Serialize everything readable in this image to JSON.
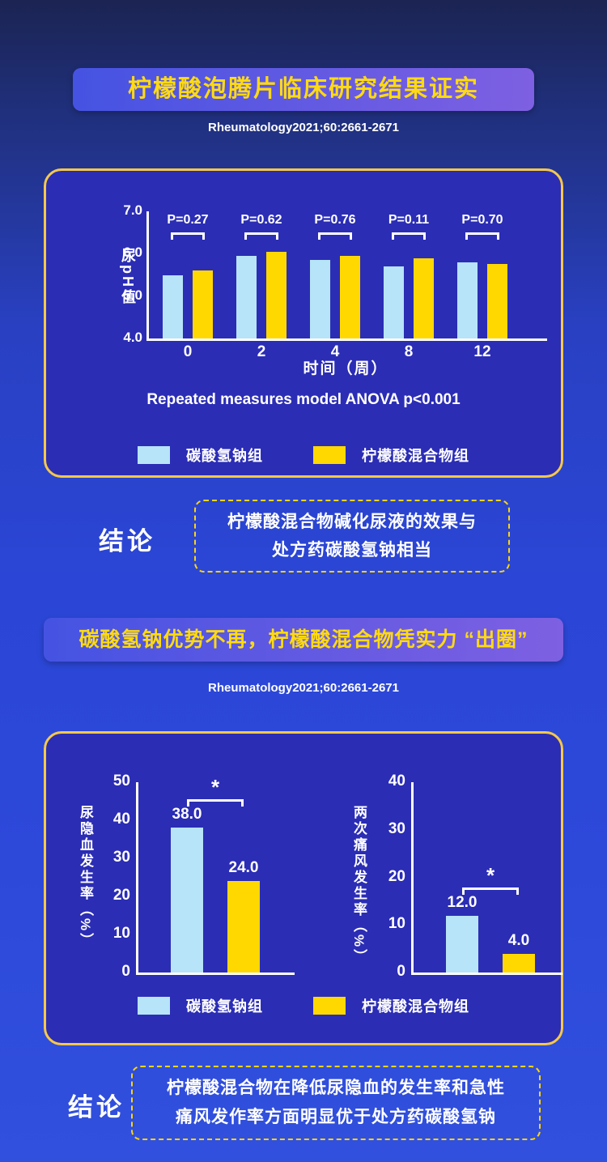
{
  "colors": {
    "accent_yellow": "#FFD60A",
    "panel_border": "#F5C84B",
    "bar_blue": "#B7E4F8",
    "bar_yellow": "#FFD800",
    "panel_background": "#2B2DB5"
  },
  "section1": {
    "title": "柠檬酸泡腾片临床研究结果证实",
    "reference": "Rheumatology2021;60:2661-2671"
  },
  "chart_data": [
    {
      "type": "bar",
      "ylabel": "尿pH值",
      "xlabel": "时间（周）",
      "ylim": [
        4.0,
        7.0
      ],
      "yticks": [
        "7.0",
        "6.0",
        "5.0",
        "4.0"
      ],
      "categories": [
        "0",
        "2",
        "4",
        "8",
        "12"
      ],
      "series": [
        {
          "name": "碳酸氢钠组",
          "color": "#B7E4F8",
          "values": [
            5.5,
            5.95,
            5.85,
            5.7,
            5.8
          ]
        },
        {
          "name": "柠檬酸混合物组",
          "color": "#FFD800",
          "values": [
            5.6,
            6.05,
            5.95,
            5.9,
            5.75
          ]
        }
      ],
      "p_values": [
        "P=0.27",
        "P=0.62",
        "P=0.76",
        "P=0.11",
        "P=0.70"
      ],
      "caption": "Repeated measures model ANOVA p<0.001",
      "legend_position": "bottom",
      "grid": false
    },
    {
      "type": "bar",
      "ylabel": "尿隐血发生率（%）",
      "ylim": [
        0,
        50
      ],
      "yticks": [
        "50",
        "40",
        "30",
        "20",
        "10",
        "0"
      ],
      "categories": [
        "碳酸氢钠组",
        "柠檬酸混合物组"
      ],
      "values": [
        38.0,
        24.0
      ],
      "value_labels": [
        "38.0",
        "24.0"
      ],
      "significance": "*",
      "grid": false
    },
    {
      "type": "bar",
      "ylabel": "两次痛风发生率（%）",
      "ylim": [
        0,
        40
      ],
      "yticks": [
        "40",
        "30",
        "20",
        "10",
        "0"
      ],
      "categories": [
        "碳酸氢钠组",
        "柠檬酸混合物组"
      ],
      "values": [
        12.0,
        4.0
      ],
      "value_labels": [
        "12.0",
        "4.0"
      ],
      "significance": "*",
      "grid": false
    }
  ],
  "conclusion1": {
    "label": "结论",
    "lines": [
      "柠檬酸混合物碱化尿液的效果与",
      "处方药碳酸氢钠相当"
    ]
  },
  "section2": {
    "title": "碳酸氢钠优势不再，柠檬酸混合物凭实力 “出圈”",
    "reference": "Rheumatology2021;60:2661-2671"
  },
  "conclusion2": {
    "label": "结论",
    "lines": [
      "柠檬酸混合物在降低尿隐血的发生率和急性",
      "痛风发作率方面明显优于处方药碳酸氢钠"
    ]
  }
}
